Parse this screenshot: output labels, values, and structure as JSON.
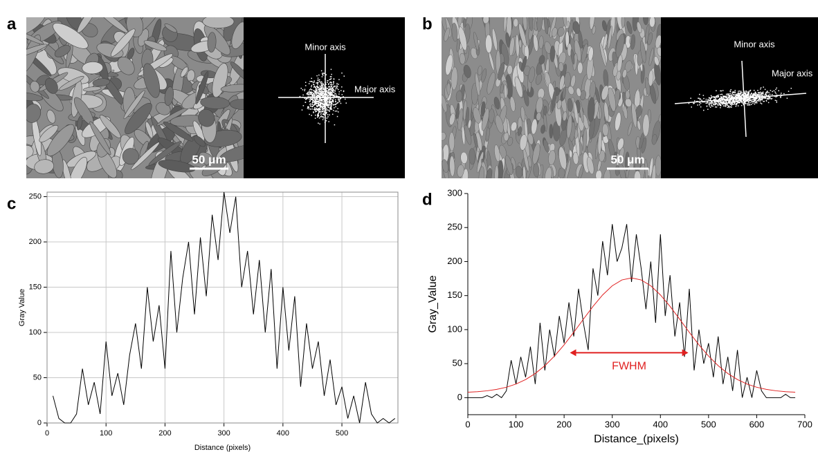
{
  "figure": {
    "panels": [
      {
        "label": "a",
        "minor_axis": "Minor axis",
        "major_axis": "Major axis",
        "scale_bar": "50 μm"
      },
      {
        "label": "b",
        "minor_axis": "Minor axis",
        "major_axis": "Major axis",
        "scale_bar": "50 μm"
      }
    ]
  },
  "chart_data": [
    {
      "type": "line",
      "panel": "c",
      "x_label": "Distance (pixels)",
      "y_label": "Gray Value",
      "x": [
        10,
        20,
        30,
        40,
        50,
        60,
        70,
        80,
        90,
        100,
        110,
        120,
        130,
        140,
        150,
        160,
        170,
        180,
        190,
        200,
        210,
        220,
        230,
        240,
        250,
        260,
        270,
        280,
        290,
        300,
        310,
        320,
        330,
        340,
        350,
        360,
        370,
        380,
        390,
        400,
        410,
        420,
        430,
        440,
        450,
        460,
        470,
        480,
        490,
        500,
        510,
        520,
        530,
        540,
        550,
        560,
        570,
        580,
        590
      ],
      "series": [
        {
          "color": "#000000",
          "values": [
            30,
            5,
            0,
            0,
            10,
            60,
            20,
            45,
            10,
            90,
            30,
            55,
            20,
            75,
            110,
            60,
            150,
            90,
            130,
            60,
            190,
            100,
            160,
            200,
            120,
            205,
            140,
            230,
            180,
            255,
            210,
            250,
            150,
            190,
            120,
            180,
            100,
            170,
            60,
            150,
            80,
            140,
            40,
            110,
            60,
            90,
            30,
            70,
            20,
            40,
            5,
            30,
            0,
            45,
            10,
            0,
            5,
            0,
            5
          ]
        }
      ],
      "xlim": [
        0,
        595
      ],
      "ylim": [
        0,
        255
      ],
      "xticks": [
        0,
        100,
        200,
        300,
        400,
        500
      ],
      "yticks": [
        0,
        50,
        100,
        150,
        200,
        250
      ],
      "grid": true
    },
    {
      "type": "line",
      "panel": "d",
      "x_label": "Distance_(pixels)",
      "y_label": "Gray_Value",
      "x": [
        0,
        10,
        20,
        30,
        40,
        50,
        60,
        70,
        80,
        90,
        100,
        110,
        120,
        130,
        140,
        150,
        160,
        170,
        180,
        190,
        200,
        210,
        220,
        230,
        240,
        250,
        260,
        270,
        280,
        290,
        300,
        310,
        320,
        330,
        340,
        350,
        360,
        370,
        380,
        390,
        400,
        410,
        420,
        430,
        440,
        450,
        460,
        470,
        480,
        490,
        500,
        510,
        520,
        530,
        540,
        550,
        560,
        570,
        580,
        590,
        600,
        610,
        620,
        630,
        640,
        650,
        660,
        670,
        680
      ],
      "series": [
        {
          "color": "#000000",
          "values": [
            0,
            0,
            0,
            0,
            3,
            0,
            5,
            0,
            10,
            55,
            20,
            60,
            30,
            75,
            20,
            110,
            40,
            100,
            60,
            120,
            80,
            140,
            90,
            160,
            110,
            70,
            190,
            150,
            230,
            180,
            255,
            200,
            220,
            255,
            170,
            240,
            190,
            130,
            200,
            110,
            240,
            120,
            180,
            90,
            140,
            60,
            160,
            40,
            100,
            50,
            80,
            30,
            90,
            20,
            60,
            10,
            70,
            0,
            30,
            0,
            40,
            10,
            0,
            0,
            0,
            0,
            5,
            0,
            0
          ]
        },
        {
          "color": "#e02020",
          "x": [
            0,
            20,
            40,
            60,
            80,
            100,
            120,
            140,
            160,
            180,
            200,
            220,
            240,
            260,
            280,
            300,
            320,
            340,
            360,
            380,
            400,
            420,
            440,
            460,
            480,
            500,
            520,
            540,
            560,
            580,
            600,
            620,
            640,
            660,
            680
          ],
          "values": [
            8,
            8.8,
            10.1,
            12.2,
            15.3,
            20,
            26.6,
            35.5,
            47,
            61.1,
            77.6,
            96,
            115.3,
            134.1,
            151,
            164.4,
            173,
            176,
            173,
            164.4,
            151,
            134.1,
            115.3,
            96,
            77.6,
            61.1,
            47,
            35.5,
            26.6,
            20,
            15.3,
            12.2,
            10.1,
            8.8,
            8
          ]
        }
      ],
      "fwhm": {
        "label": "FWHM",
        "x1": 212,
        "x2": 458,
        "y": 66,
        "color": "#e02020"
      },
      "xlim": [
        0,
        700
      ],
      "ylim": [
        -25,
        300
      ],
      "xticks": [
        0,
        100,
        200,
        300,
        400,
        500,
        600,
        700
      ],
      "yticks": [
        0,
        50,
        100,
        150,
        200,
        250,
        300
      ],
      "grid": false
    }
  ]
}
